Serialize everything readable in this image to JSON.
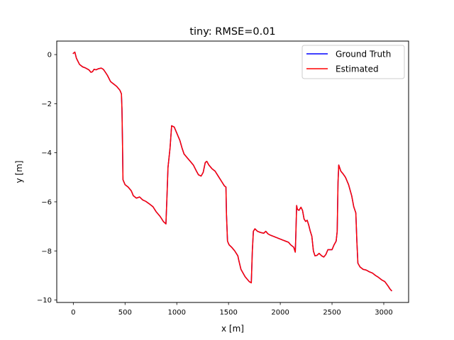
{
  "chart_data": {
    "type": "line",
    "title": "tiny: RMSE=0.01",
    "xlabel": "x [m]",
    "ylabel": "y [m]",
    "xlim": [
      -160,
      3240
    ],
    "ylim": [
      -10.1,
      0.55
    ],
    "xticks": [
      0,
      500,
      1000,
      1500,
      2000,
      2500,
      3000
    ],
    "yticks": [
      0,
      -2,
      -4,
      -6,
      -8,
      -10
    ],
    "xtick_labels": [
      "0",
      "500",
      "1000",
      "1500",
      "2000",
      "2500",
      "3000"
    ],
    "ytick_labels": [
      "0",
      "−2",
      "−4",
      "−6",
      "−8",
      "−10"
    ],
    "grid": false,
    "legend_position": "upper right",
    "series": [
      {
        "name": "Ground Truth",
        "color": "#0000ff",
        "points": [
          [
            0,
            0.05
          ],
          [
            15,
            0.1
          ],
          [
            30,
            -0.15
          ],
          [
            60,
            -0.4
          ],
          [
            90,
            -0.5
          ],
          [
            120,
            -0.55
          ],
          [
            150,
            -0.62
          ],
          [
            170,
            -0.72
          ],
          [
            185,
            -0.7
          ],
          [
            200,
            -0.6
          ],
          [
            220,
            -0.62
          ],
          [
            240,
            -0.58
          ],
          [
            270,
            -0.55
          ],
          [
            290,
            -0.6
          ],
          [
            310,
            -0.72
          ],
          [
            330,
            -0.85
          ],
          [
            360,
            -1.1
          ],
          [
            390,
            -1.2
          ],
          [
            420,
            -1.3
          ],
          [
            450,
            -1.45
          ],
          [
            465,
            -1.6
          ],
          [
            470,
            -2.2
          ],
          [
            475,
            -3.5
          ],
          [
            480,
            -5.1
          ],
          [
            500,
            -5.3
          ],
          [
            530,
            -5.4
          ],
          [
            560,
            -5.55
          ],
          [
            580,
            -5.75
          ],
          [
            610,
            -5.85
          ],
          [
            640,
            -5.8
          ],
          [
            670,
            -5.92
          ],
          [
            700,
            -5.98
          ],
          [
            740,
            -6.1
          ],
          [
            770,
            -6.2
          ],
          [
            800,
            -6.4
          ],
          [
            840,
            -6.6
          ],
          [
            870,
            -6.8
          ],
          [
            895,
            -6.9
          ],
          [
            905,
            -5.8
          ],
          [
            915,
            -4.6
          ],
          [
            935,
            -3.8
          ],
          [
            950,
            -2.9
          ],
          [
            975,
            -2.95
          ],
          [
            1000,
            -3.2
          ],
          [
            1030,
            -3.5
          ],
          [
            1050,
            -3.8
          ],
          [
            1070,
            -4.05
          ],
          [
            1100,
            -4.2
          ],
          [
            1130,
            -4.35
          ],
          [
            1160,
            -4.5
          ],
          [
            1190,
            -4.75
          ],
          [
            1210,
            -4.9
          ],
          [
            1235,
            -4.95
          ],
          [
            1255,
            -4.8
          ],
          [
            1275,
            -4.4
          ],
          [
            1290,
            -4.35
          ],
          [
            1310,
            -4.5
          ],
          [
            1340,
            -4.65
          ],
          [
            1370,
            -4.75
          ],
          [
            1400,
            -4.95
          ],
          [
            1430,
            -5.15
          ],
          [
            1460,
            -5.35
          ],
          [
            1475,
            -5.4
          ],
          [
            1480,
            -6.5
          ],
          [
            1490,
            -7.6
          ],
          [
            1505,
            -7.75
          ],
          [
            1530,
            -7.85
          ],
          [
            1560,
            -8.0
          ],
          [
            1590,
            -8.2
          ],
          [
            1600,
            -8.4
          ],
          [
            1620,
            -8.75
          ],
          [
            1660,
            -9.05
          ],
          [
            1700,
            -9.25
          ],
          [
            1720,
            -9.3
          ],
          [
            1730,
            -8.0
          ],
          [
            1740,
            -7.2
          ],
          [
            1755,
            -7.1
          ],
          [
            1780,
            -7.2
          ],
          [
            1810,
            -7.25
          ],
          [
            1840,
            -7.28
          ],
          [
            1860,
            -7.2
          ],
          [
            1880,
            -7.3
          ],
          [
            1900,
            -7.35
          ],
          [
            1930,
            -7.4
          ],
          [
            1960,
            -7.45
          ],
          [
            1990,
            -7.5
          ],
          [
            2020,
            -7.55
          ],
          [
            2050,
            -7.6
          ],
          [
            2080,
            -7.65
          ],
          [
            2100,
            -7.75
          ],
          [
            2130,
            -7.85
          ],
          [
            2145,
            -8.05
          ],
          [
            2150,
            -7.4
          ],
          [
            2158,
            -6.15
          ],
          [
            2165,
            -6.3
          ],
          [
            2180,
            -6.35
          ],
          [
            2200,
            -6.22
          ],
          [
            2215,
            -6.35
          ],
          [
            2230,
            -6.7
          ],
          [
            2245,
            -6.8
          ],
          [
            2260,
            -6.75
          ],
          [
            2275,
            -6.95
          ],
          [
            2290,
            -7.2
          ],
          [
            2305,
            -7.4
          ],
          [
            2320,
            -8.0
          ],
          [
            2335,
            -8.2
          ],
          [
            2355,
            -8.18
          ],
          [
            2375,
            -8.1
          ],
          [
            2400,
            -8.2
          ],
          [
            2420,
            -8.25
          ],
          [
            2440,
            -8.15
          ],
          [
            2460,
            -7.95
          ],
          [
            2480,
            -7.95
          ],
          [
            2500,
            -7.95
          ],
          [
            2520,
            -7.75
          ],
          [
            2540,
            -7.6
          ],
          [
            2550,
            -7.2
          ],
          [
            2558,
            -5.2
          ],
          [
            2565,
            -4.5
          ],
          [
            2585,
            -4.75
          ],
          [
            2605,
            -4.85
          ],
          [
            2630,
            -5.0
          ],
          [
            2660,
            -5.3
          ],
          [
            2690,
            -5.75
          ],
          [
            2710,
            -6.2
          ],
          [
            2730,
            -6.45
          ],
          [
            2740,
            -7.6
          ],
          [
            2750,
            -8.5
          ],
          [
            2770,
            -8.65
          ],
          [
            2800,
            -8.75
          ],
          [
            2830,
            -8.78
          ],
          [
            2860,
            -8.85
          ],
          [
            2890,
            -8.9
          ],
          [
            2920,
            -9.0
          ],
          [
            2950,
            -9.08
          ],
          [
            2980,
            -9.18
          ],
          [
            3010,
            -9.25
          ],
          [
            3040,
            -9.42
          ],
          [
            3060,
            -9.55
          ],
          [
            3075,
            -9.62
          ]
        ]
      },
      {
        "name": "Estimated",
        "color": "#ff0000",
        "points": [
          [
            0,
            0.05
          ],
          [
            15,
            0.1
          ],
          [
            30,
            -0.15
          ],
          [
            60,
            -0.4
          ],
          [
            90,
            -0.5
          ],
          [
            120,
            -0.55
          ],
          [
            150,
            -0.62
          ],
          [
            170,
            -0.72
          ],
          [
            185,
            -0.7
          ],
          [
            200,
            -0.6
          ],
          [
            220,
            -0.62
          ],
          [
            240,
            -0.58
          ],
          [
            270,
            -0.55
          ],
          [
            290,
            -0.6
          ],
          [
            310,
            -0.72
          ],
          [
            330,
            -0.85
          ],
          [
            360,
            -1.1
          ],
          [
            390,
            -1.2
          ],
          [
            420,
            -1.3
          ],
          [
            450,
            -1.45
          ],
          [
            465,
            -1.6
          ],
          [
            470,
            -2.2
          ],
          [
            475,
            -3.5
          ],
          [
            480,
            -5.1
          ],
          [
            500,
            -5.3
          ],
          [
            530,
            -5.4
          ],
          [
            560,
            -5.55
          ],
          [
            580,
            -5.75
          ],
          [
            610,
            -5.85
          ],
          [
            640,
            -5.8
          ],
          [
            670,
            -5.92
          ],
          [
            700,
            -5.98
          ],
          [
            740,
            -6.1
          ],
          [
            770,
            -6.2
          ],
          [
            800,
            -6.4
          ],
          [
            840,
            -6.6
          ],
          [
            870,
            -6.8
          ],
          [
            895,
            -6.9
          ],
          [
            905,
            -5.8
          ],
          [
            915,
            -4.6
          ],
          [
            935,
            -3.8
          ],
          [
            950,
            -2.9
          ],
          [
            975,
            -2.95
          ],
          [
            1000,
            -3.2
          ],
          [
            1030,
            -3.5
          ],
          [
            1050,
            -3.8
          ],
          [
            1070,
            -4.05
          ],
          [
            1100,
            -4.2
          ],
          [
            1130,
            -4.35
          ],
          [
            1160,
            -4.5
          ],
          [
            1190,
            -4.75
          ],
          [
            1210,
            -4.9
          ],
          [
            1235,
            -4.95
          ],
          [
            1255,
            -4.8
          ],
          [
            1275,
            -4.4
          ],
          [
            1290,
            -4.35
          ],
          [
            1310,
            -4.5
          ],
          [
            1340,
            -4.65
          ],
          [
            1370,
            -4.75
          ],
          [
            1400,
            -4.95
          ],
          [
            1430,
            -5.15
          ],
          [
            1460,
            -5.35
          ],
          [
            1475,
            -5.4
          ],
          [
            1480,
            -6.5
          ],
          [
            1490,
            -7.6
          ],
          [
            1505,
            -7.75
          ],
          [
            1530,
            -7.85
          ],
          [
            1560,
            -8.0
          ],
          [
            1590,
            -8.2
          ],
          [
            1600,
            -8.4
          ],
          [
            1620,
            -8.75
          ],
          [
            1660,
            -9.05
          ],
          [
            1700,
            -9.25
          ],
          [
            1720,
            -9.3
          ],
          [
            1730,
            -8.0
          ],
          [
            1740,
            -7.2
          ],
          [
            1755,
            -7.1
          ],
          [
            1780,
            -7.2
          ],
          [
            1810,
            -7.25
          ],
          [
            1840,
            -7.28
          ],
          [
            1860,
            -7.2
          ],
          [
            1880,
            -7.3
          ],
          [
            1900,
            -7.35
          ],
          [
            1930,
            -7.4
          ],
          [
            1960,
            -7.45
          ],
          [
            1990,
            -7.5
          ],
          [
            2020,
            -7.55
          ],
          [
            2050,
            -7.6
          ],
          [
            2080,
            -7.65
          ],
          [
            2100,
            -7.75
          ],
          [
            2130,
            -7.85
          ],
          [
            2145,
            -8.05
          ],
          [
            2150,
            -7.4
          ],
          [
            2158,
            -6.15
          ],
          [
            2165,
            -6.3
          ],
          [
            2180,
            -6.35
          ],
          [
            2200,
            -6.22
          ],
          [
            2215,
            -6.35
          ],
          [
            2230,
            -6.7
          ],
          [
            2245,
            -6.8
          ],
          [
            2260,
            -6.75
          ],
          [
            2275,
            -6.95
          ],
          [
            2290,
            -7.2
          ],
          [
            2305,
            -7.4
          ],
          [
            2320,
            -8.0
          ],
          [
            2335,
            -8.2
          ],
          [
            2355,
            -8.18
          ],
          [
            2375,
            -8.1
          ],
          [
            2400,
            -8.2
          ],
          [
            2420,
            -8.25
          ],
          [
            2440,
            -8.15
          ],
          [
            2460,
            -7.95
          ],
          [
            2480,
            -7.95
          ],
          [
            2500,
            -7.95
          ],
          [
            2520,
            -7.75
          ],
          [
            2540,
            -7.6
          ],
          [
            2550,
            -7.2
          ],
          [
            2558,
            -5.2
          ],
          [
            2565,
            -4.5
          ],
          [
            2585,
            -4.75
          ],
          [
            2605,
            -4.85
          ],
          [
            2630,
            -5.0
          ],
          [
            2660,
            -5.3
          ],
          [
            2690,
            -5.75
          ],
          [
            2710,
            -6.2
          ],
          [
            2730,
            -6.45
          ],
          [
            2740,
            -7.6
          ],
          [
            2750,
            -8.5
          ],
          [
            2770,
            -8.65
          ],
          [
            2800,
            -8.75
          ],
          [
            2830,
            -8.78
          ],
          [
            2860,
            -8.85
          ],
          [
            2890,
            -8.9
          ],
          [
            2920,
            -9.0
          ],
          [
            2950,
            -9.08
          ],
          [
            2980,
            -9.18
          ],
          [
            3010,
            -9.25
          ],
          [
            3040,
            -9.42
          ],
          [
            3060,
            -9.55
          ],
          [
            3075,
            -9.62
          ]
        ]
      }
    ]
  }
}
